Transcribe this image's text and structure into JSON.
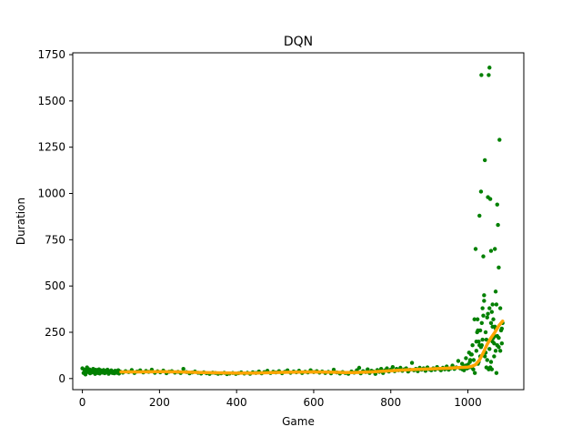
{
  "chart_data": {
    "type": "scatter",
    "title": "DQN",
    "xlabel": "Game",
    "ylabel": "Duration",
    "xlim": [
      -25,
      1145
    ],
    "ylim": [
      -60,
      1760
    ],
    "xticks": [
      0,
      200,
      400,
      600,
      800,
      1000
    ],
    "yticks": [
      0,
      250,
      500,
      750,
      1000,
      1250,
      1500,
      1750
    ],
    "grid": false,
    "legend": "none",
    "colors": {
      "points": "#008000",
      "moving_average": "#FFA500"
    },
    "series": [
      {
        "type": "scatter",
        "points": [
          [
            0,
            55
          ],
          [
            3,
            30
          ],
          [
            5,
            48
          ],
          [
            8,
            22
          ],
          [
            10,
            42
          ],
          [
            12,
            60
          ],
          [
            15,
            35
          ],
          [
            18,
            50
          ],
          [
            20,
            28
          ],
          [
            23,
            45
          ],
          [
            25,
            33
          ],
          [
            28,
            52
          ],
          [
            30,
            40
          ],
          [
            33,
            25
          ],
          [
            35,
            47
          ],
          [
            38,
            36
          ],
          [
            40,
            30
          ],
          [
            43,
            50
          ],
          [
            45,
            27
          ],
          [
            48,
            44
          ],
          [
            50,
            38
          ],
          [
            53,
            32
          ],
          [
            55,
            46
          ],
          [
            58,
            29
          ],
          [
            60,
            41
          ],
          [
            63,
            35
          ],
          [
            65,
            48
          ],
          [
            68,
            26
          ],
          [
            70,
            39
          ],
          [
            73,
            33
          ],
          [
            75,
            44
          ],
          [
            78,
            30
          ],
          [
            80,
            37
          ],
          [
            83,
            28
          ],
          [
            85,
            42
          ],
          [
            88,
            34
          ],
          [
            90,
            31
          ],
          [
            93,
            45
          ],
          [
            95,
            27
          ],
          [
            98,
            38
          ],
          [
            105,
            32
          ],
          [
            112,
            40
          ],
          [
            120,
            35
          ],
          [
            128,
            46
          ],
          [
            135,
            30
          ],
          [
            142,
            38
          ],
          [
            150,
            44
          ],
          [
            158,
            33
          ],
          [
            165,
            41
          ],
          [
            172,
            36
          ],
          [
            180,
            48
          ],
          [
            188,
            31
          ],
          [
            195,
            39
          ],
          [
            202,
            34
          ],
          [
            210,
            43
          ],
          [
            218,
            29
          ],
          [
            225,
            37
          ],
          [
            232,
            40
          ],
          [
            240,
            32
          ],
          [
            248,
            36
          ],
          [
            255,
            30
          ],
          [
            262,
            52
          ],
          [
            270,
            35
          ],
          [
            278,
            28
          ],
          [
            285,
            33
          ],
          [
            292,
            38
          ],
          [
            300,
            31
          ],
          [
            308,
            27
          ],
          [
            315,
            34
          ],
          [
            322,
            29
          ],
          [
            330,
            25
          ],
          [
            338,
            32
          ],
          [
            345,
            30
          ],
          [
            352,
            26
          ],
          [
            360,
            28
          ],
          [
            368,
            31
          ],
          [
            375,
            24
          ],
          [
            382,
            27
          ],
          [
            390,
            30
          ],
          [
            398,
            25
          ],
          [
            405,
            29
          ],
          [
            412,
            33
          ],
          [
            420,
            27
          ],
          [
            428,
            31
          ],
          [
            435,
            26
          ],
          [
            442,
            34
          ],
          [
            450,
            30
          ],
          [
            458,
            38
          ],
          [
            465,
            28
          ],
          [
            472,
            35
          ],
          [
            480,
            42
          ],
          [
            488,
            30
          ],
          [
            495,
            37
          ],
          [
            502,
            33
          ],
          [
            510,
            40
          ],
          [
            518,
            29
          ],
          [
            525,
            36
          ],
          [
            532,
            44
          ],
          [
            540,
            31
          ],
          [
            548,
            38
          ],
          [
            555,
            34
          ],
          [
            562,
            42
          ],
          [
            570,
            30
          ],
          [
            578,
            37
          ],
          [
            585,
            33
          ],
          [
            592,
            45
          ],
          [
            600,
            35
          ],
          [
            608,
            40
          ],
          [
            615,
            32
          ],
          [
            622,
            38
          ],
          [
            630,
            30
          ],
          [
            638,
            36
          ],
          [
            645,
            28
          ],
          [
            652,
            48
          ],
          [
            660,
            33
          ],
          [
            668,
            27
          ],
          [
            675,
            35
          ],
          [
            682,
            30
          ],
          [
            690,
            26
          ],
          [
            698,
            38
          ],
          [
            705,
            32
          ],
          [
            712,
            45
          ],
          [
            718,
            58
          ],
          [
            722,
            28
          ],
          [
            728,
            40
          ],
          [
            735,
            35
          ],
          [
            740,
            50
          ],
          [
            745,
            30
          ],
          [
            750,
            42
          ],
          [
            755,
            38
          ],
          [
            760,
            25
          ],
          [
            765,
            46
          ],
          [
            770,
            36
          ],
          [
            775,
            52
          ],
          [
            780,
            30
          ],
          [
            785,
            44
          ],
          [
            790,
            55
          ],
          [
            795,
            38
          ],
          [
            800,
            48
          ],
          [
            805,
            62
          ],
          [
            810,
            40
          ],
          [
            815,
            52
          ],
          [
            820,
            45
          ],
          [
            825,
            58
          ],
          [
            830,
            42
          ],
          [
            835,
            50
          ],
          [
            840,
            55
          ],
          [
            845,
            38
          ],
          [
            850,
            48
          ],
          [
            855,
            85
          ],
          [
            860,
            45
          ],
          [
            865,
            52
          ],
          [
            870,
            40
          ],
          [
            875,
            58
          ],
          [
            880,
            48
          ],
          [
            885,
            55
          ],
          [
            890,
            42
          ],
          [
            895,
            60
          ],
          [
            900,
            50
          ],
          [
            905,
            45
          ],
          [
            910,
            55
          ],
          [
            915,
            48
          ],
          [
            920,
            62
          ],
          [
            925,
            52
          ],
          [
            930,
            45
          ],
          [
            935,
            58
          ],
          [
            940,
            50
          ],
          [
            945,
            65
          ],
          [
            950,
            48
          ],
          [
            955,
            55
          ],
          [
            960,
            70
          ],
          [
            965,
            52
          ],
          [
            970,
            60
          ],
          [
            975,
            95
          ],
          [
            980,
            55
          ],
          [
            985,
            80
          ],
          [
            990,
            65
          ],
          [
            995,
            110
          ],
          [
            1000,
            75
          ],
          [
            1003,
            140
          ],
          [
            1005,
            90
          ],
          [
            1008,
            130
          ],
          [
            1010,
            60
          ],
          [
            1012,
            180
          ],
          [
            1015,
            100
          ],
          [
            1017,
            320
          ],
          [
            1020,
            700
          ],
          [
            1022,
            150
          ],
          [
            1024,
            250
          ],
          [
            1026,
            80
          ],
          [
            1028,
            200
          ],
          [
            1030,
            880
          ],
          [
            1032,
            120
          ],
          [
            1034,
            1010
          ],
          [
            1035,
            1640
          ],
          [
            1036,
            300
          ],
          [
            1038,
            380
          ],
          [
            1040,
            660
          ],
          [
            1042,
            420
          ],
          [
            1044,
            1180
          ],
          [
            1046,
            250
          ],
          [
            1048,
            60
          ],
          [
            1050,
            330
          ],
          [
            1052,
            980
          ],
          [
            1054,
            1640
          ],
          [
            1056,
            1680
          ],
          [
            1058,
            970
          ],
          [
            1060,
            690
          ],
          [
            1062,
            360
          ],
          [
            1064,
            200
          ],
          [
            1066,
            320
          ],
          [
            1068,
            120
          ],
          [
            1070,
            700
          ],
          [
            1072,
            150
          ],
          [
            1074,
            400
          ],
          [
            1076,
            940
          ],
          [
            1078,
            830
          ],
          [
            1080,
            600
          ],
          [
            1082,
            1290
          ],
          [
            1084,
            380
          ],
          [
            1086,
            260
          ],
          [
            1088,
            190
          ],
          [
            1090,
            300
          ],
          [
            1056,
            160
          ],
          [
            1060,
            90
          ],
          [
            1064,
            280
          ],
          [
            1068,
            230
          ],
          [
            1072,
            470
          ],
          [
            1076,
            180
          ],
          [
            1080,
            170
          ],
          [
            1046,
            140
          ],
          [
            1050,
            100
          ],
          [
            1054,
            50
          ],
          [
            1058,
            60
          ],
          [
            1062,
            50
          ],
          [
            1066,
            220
          ],
          [
            1070,
            280
          ],
          [
            1074,
            30
          ],
          [
            1040,
            340
          ],
          [
            1026,
            260
          ],
          [
            1028,
            90
          ],
          [
            1034,
            170
          ],
          [
            1038,
            210
          ],
          [
            1042,
            450
          ],
          [
            1014,
            50
          ],
          [
            1018,
            30
          ],
          [
            1022,
            200
          ],
          [
            1025,
            320
          ],
          [
            1030,
            180
          ],
          [
            1032,
            260
          ],
          [
            1036,
            180
          ],
          [
            1044,
            120
          ],
          [
            1048,
            210
          ],
          [
            1052,
            350
          ],
          [
            1056,
            380
          ],
          [
            1060,
            300
          ],
          [
            1064,
            400
          ],
          [
            1068,
            190
          ],
          [
            1072,
            270
          ],
          [
            1076,
            230
          ],
          [
            1080,
            220
          ],
          [
            1084,
            150
          ],
          [
            1088,
            270
          ],
          [
            1010,
            130
          ],
          [
            1006,
            100
          ],
          [
            1002,
            60
          ],
          [
            998,
            55
          ],
          [
            994,
            70
          ],
          [
            990,
            45
          ],
          [
            986,
            50
          ]
        ]
      },
      {
        "type": "line",
        "name": "",
        "x": [
          100,
          150,
          200,
          250,
          300,
          350,
          400,
          450,
          500,
          550,
          600,
          650,
          700,
          750,
          800,
          850,
          900,
          950,
          1000,
          1010,
          1020,
          1030,
          1040,
          1050,
          1060,
          1070,
          1080,
          1090
        ],
        "y": [
          36,
          36,
          37,
          36,
          33,
          31,
          29,
          30,
          33,
          35,
          36,
          34,
          32,
          36,
          42,
          48,
          52,
          56,
          62,
          66,
          75,
          100,
          140,
          185,
          220,
          250,
          285,
          310
        ]
      }
    ]
  }
}
